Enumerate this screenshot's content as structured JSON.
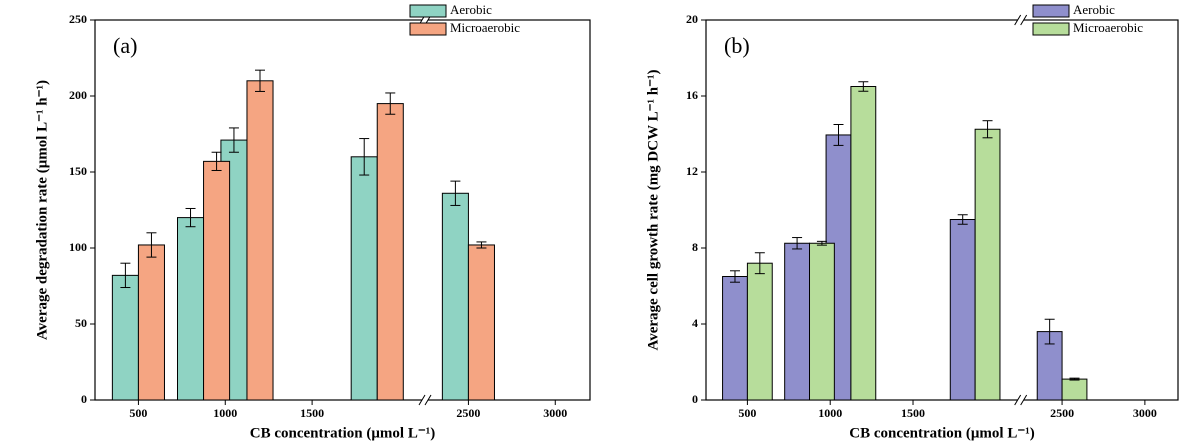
{
  "chart_data": [
    {
      "type": "bar",
      "panel_label": "(a)",
      "x_label": "CB concentration (μmol L⁻¹)",
      "y_label": "Average degradation rate (μmol L⁻¹ h⁻¹)",
      "x": [
        500,
        875,
        1125,
        1875,
        2500
      ],
      "xsegments": [
        [
          250,
          2150
        ],
        [
          2250,
          3200
        ]
      ],
      "xticks": [
        500,
        1000,
        1500,
        2500,
        3000
      ],
      "ylim": [
        0,
        250
      ],
      "yticks": [
        0,
        50,
        100,
        150,
        200,
        250
      ],
      "legend": "upper right",
      "series": [
        {
          "name": "Aerobic",
          "color": "#8fd3c3",
          "values": [
            82,
            120,
            171,
            160,
            136
          ],
          "errors": [
            8,
            6,
            8,
            12,
            8
          ]
        },
        {
          "name": "Microaerobic",
          "color": "#f5a582",
          "values": [
            102,
            157,
            210,
            195,
            102
          ],
          "errors": [
            8,
            6,
            7,
            7,
            2
          ]
        }
      ]
    },
    {
      "type": "bar",
      "panel_label": "(b)",
      "x_label": "CB concentration (μmol L⁻¹)",
      "y_label": "Average cell growth rate (mg DCW L⁻¹ h⁻¹)",
      "x": [
        500,
        875,
        1125,
        1875,
        2500
      ],
      "xsegments": [
        [
          250,
          2150
        ],
        [
          2250,
          3200
        ]
      ],
      "xticks": [
        500,
        1000,
        1500,
        2500,
        3000
      ],
      "ylim": [
        0,
        20
      ],
      "yticks": [
        0,
        4,
        8,
        12,
        16,
        20
      ],
      "legend": "upper right",
      "series": [
        {
          "name": "Aerobic",
          "color": "#8f8fcc",
          "values": [
            6.5,
            8.25,
            13.95,
            9.5,
            3.6
          ],
          "errors": [
            0.3,
            0.3,
            0.55,
            0.25,
            0.65
          ]
        },
        {
          "name": "Microaerobic",
          "color": "#b7dd9b",
          "values": [
            7.2,
            8.25,
            16.5,
            14.25,
            1.1
          ],
          "errors": [
            0.55,
            0.1,
            0.25,
            0.45,
            0.05
          ]
        }
      ]
    }
  ]
}
